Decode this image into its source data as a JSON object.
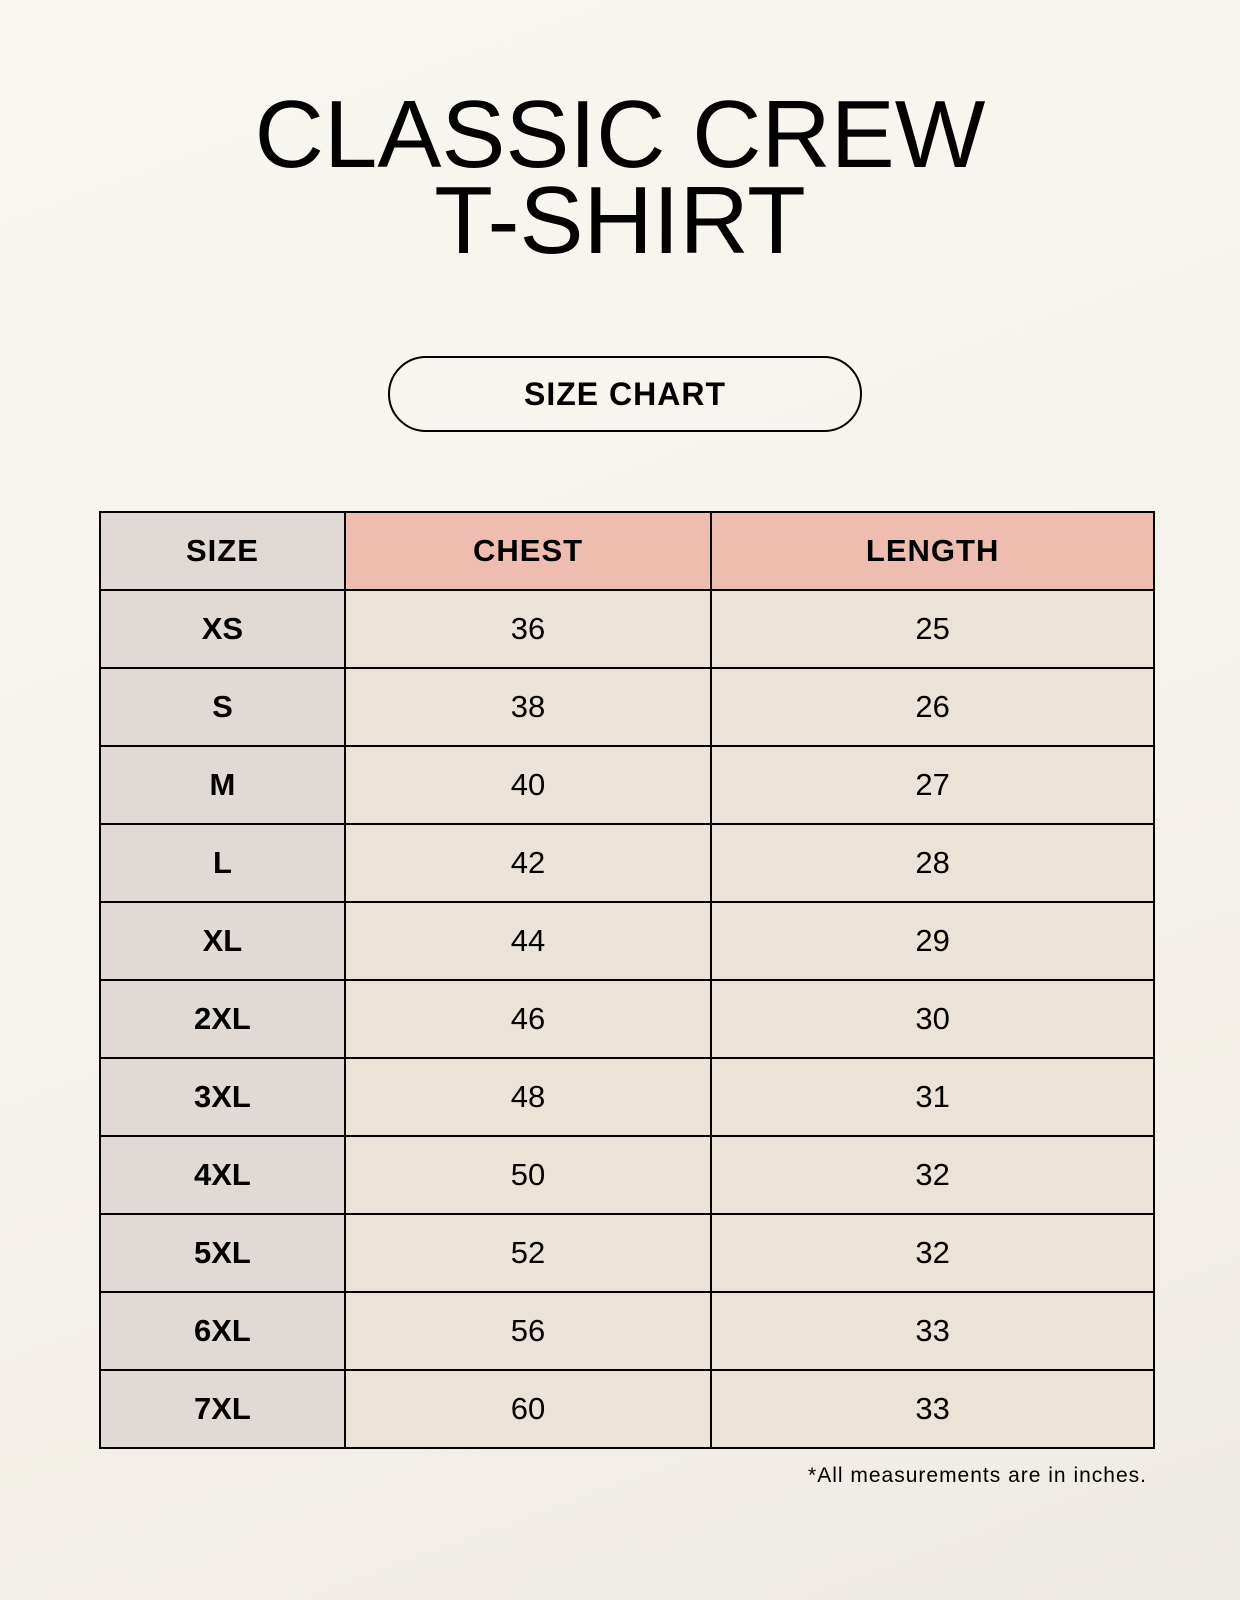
{
  "title_lines": [
    "CLASSIC CREW",
    "T-SHIRT"
  ],
  "subtitle": "SIZE CHART",
  "table": {
    "headers": [
      "SIZE",
      "CHEST",
      "LENGTH"
    ],
    "rows": [
      [
        "XS",
        "36",
        "25"
      ],
      [
        "S",
        "38",
        "26"
      ],
      [
        "M",
        "40",
        "27"
      ],
      [
        "L",
        "42",
        "28"
      ],
      [
        "XL",
        "44",
        "29"
      ],
      [
        "2XL",
        "46",
        "30"
      ],
      [
        "3XL",
        "48",
        "31"
      ],
      [
        "4XL",
        "50",
        "32"
      ],
      [
        "5XL",
        "52",
        "32"
      ],
      [
        "6XL",
        "56",
        "33"
      ],
      [
        "7XL",
        "60",
        "33"
      ]
    ]
  },
  "footnote": "*All measurements are in inches.",
  "colors": {
    "background": "#f8f5ef",
    "size_column": "#e1d9d3",
    "header_accent": "#efbdb0",
    "data_cells": "#ebe3d8"
  }
}
